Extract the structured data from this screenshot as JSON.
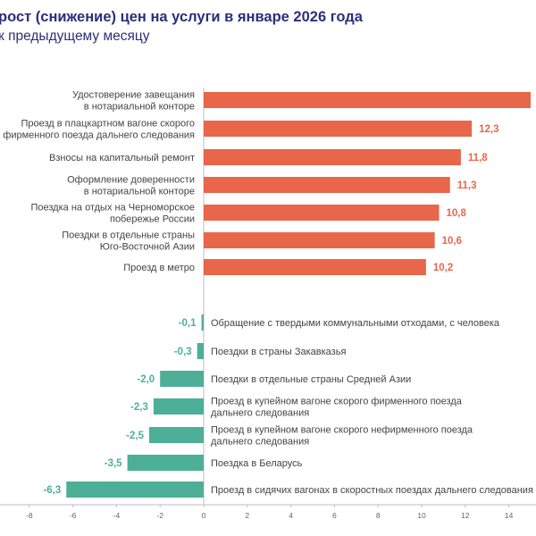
{
  "header": {
    "title": "рост (снижение) цен на услуги в январе 2026 года",
    "subtitle": "к предыдущему месяцу"
  },
  "colors": {
    "positive": "#e8674a",
    "negative": "#4daf98",
    "title": "#2b2f7a"
  },
  "chart_data": {
    "type": "bar",
    "orientation": "horizontal",
    "title": "рост (снижение) цен на услуги в январе 2026 года",
    "subtitle": "к предыдущему месяцу",
    "xlim": [
      -9,
      15
    ],
    "x_ticks": [
      "-8",
      "-6",
      "-4",
      "-2",
      "0",
      "2",
      "4",
      "6",
      "8",
      "10",
      "12",
      "14"
    ],
    "x_tick_values": [
      -8,
      -6,
      -4,
      -2,
      0,
      2,
      4,
      6,
      8,
      10,
      12,
      14
    ],
    "categories": [
      [
        "Удостоверение завещания",
        "в нотариальной конторе"
      ],
      [
        "Проезд в плацкартном вагоне скорого",
        "фирменного поезда дальнего следования"
      ],
      [
        "Взносы на капитальный ремонт"
      ],
      [
        "Оформление доверенности",
        "в нотариальной конторе"
      ],
      [
        "Поездка на отдых на Черноморское",
        "побережье России"
      ],
      [
        "Поездки в отдельные страны",
        "Юго-Восточной Азии"
      ],
      [
        "Проезд в метро"
      ],
      [
        "Обращение с твердыми коммунальными отходами, с человека"
      ],
      [
        "Поездки в страны Закавказья"
      ],
      [
        "Поездки в отдельные страны Средней Азии"
      ],
      [
        "Проезд в купейном вагоне скорого фирменного поезда",
        "дальнего следования"
      ],
      [
        "Проезд в купейном вагоне скорого нефирменного поезда",
        "дальнего следования"
      ],
      [
        "Поездка в Беларусь"
      ],
      [
        "Проезд в сидячих вагонах в скоростных поездах дальнего следования"
      ]
    ],
    "values": [
      15.0,
      12.3,
      11.8,
      11.3,
      10.8,
      10.6,
      10.2,
      -0.1,
      -0.3,
      -2.0,
      -2.3,
      -2.5,
      -3.5,
      -6.3
    ],
    "value_labels": [
      "",
      "12,3",
      "11,8",
      "11,3",
      "10,8",
      "10,6",
      "10,2",
      "-0,1",
      "-0,3",
      "-2,0",
      "-2,3",
      "-2,5",
      "-3,5",
      "-6,3"
    ]
  }
}
